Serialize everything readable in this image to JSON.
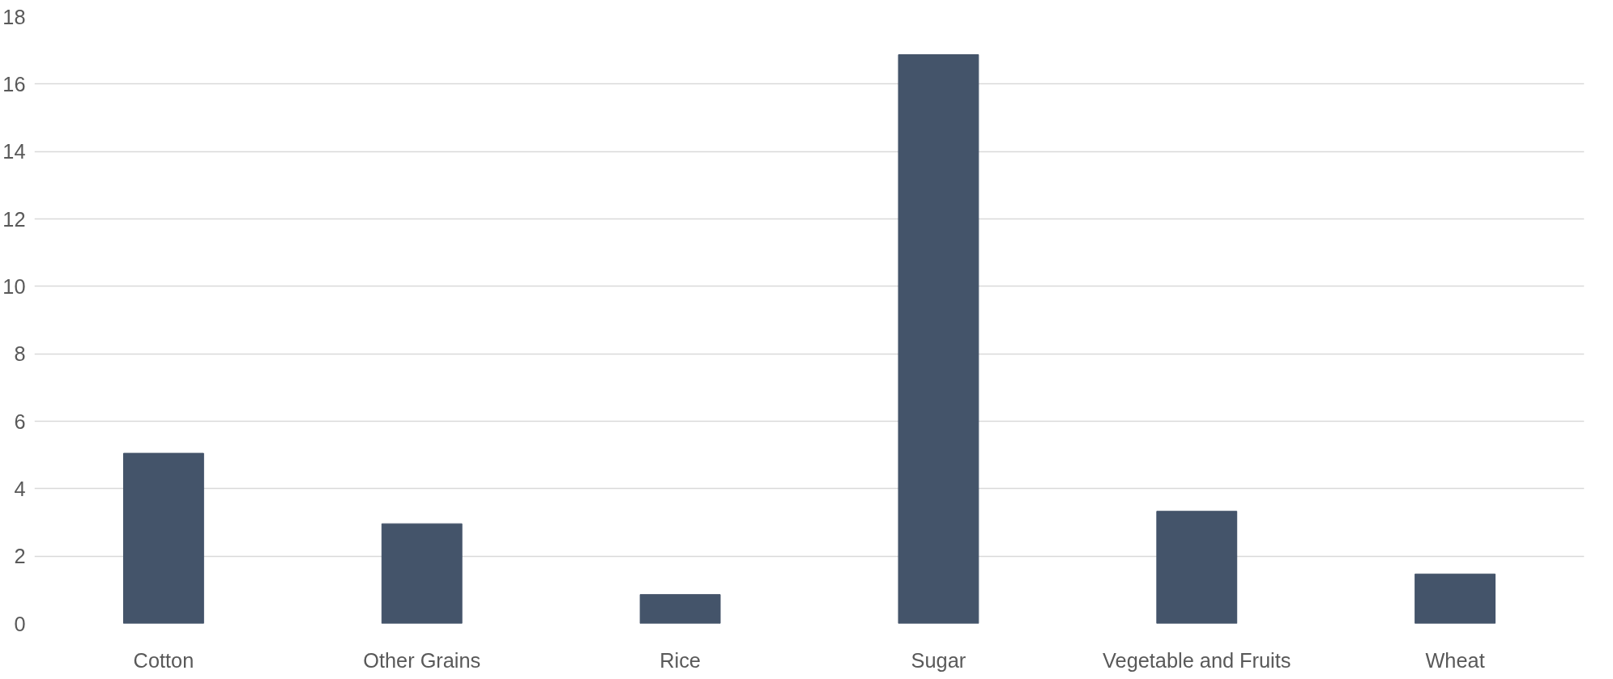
{
  "chart_data": {
    "type": "bar",
    "categories": [
      "Cotton",
      "Other Grains",
      "Rice",
      "Sugar",
      "Vegetable and Fruits",
      "Wheat"
    ],
    "values": [
      5.05,
      2.96,
      0.86,
      16.87,
      3.33,
      1.47
    ],
    "color": "#44546a",
    "ylim": [
      0,
      18
    ],
    "yticks": [
      0,
      2,
      4,
      6,
      8,
      10,
      12,
      14,
      16,
      18
    ],
    "grid": "y"
  }
}
